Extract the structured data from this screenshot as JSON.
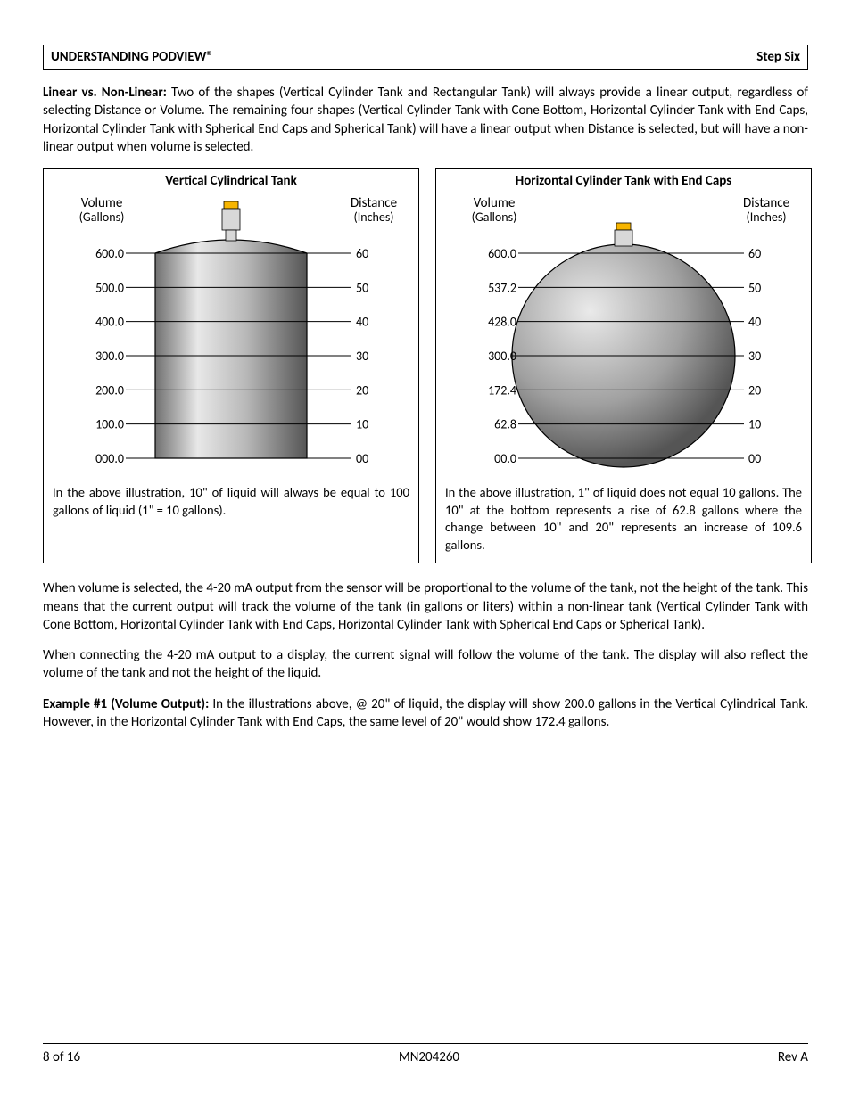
{
  "header": {
    "title": "UNDERSTANDING PODVIEW®",
    "step": "Step Six"
  },
  "intro": {
    "lead": "Linear vs. Non-Linear:",
    "text": "  Two of the shapes (Vertical Cylinder Tank and Rectangular Tank) will always provide a linear output, regardless of selecting Distance or Volume.  The remaining four shapes (Vertical Cylinder Tank with Cone Bottom, Horizontal Cylinder Tank with End Caps, Horizontal Cylinder Tank with Spherical End Caps and Spherical Tank) will have a linear output when Distance is selected, but will have a non-linear output when volume is selected."
  },
  "vertical_chart": {
    "title": "Vertical Cylindrical Tank",
    "left_header": "Volume",
    "left_sub": "(Gallons)",
    "right_header": "Distance",
    "right_sub": "(Inches)",
    "rows": [
      {
        "vol": "600.0",
        "dist": "60"
      },
      {
        "vol": "500.0",
        "dist": "50"
      },
      {
        "vol": "400.0",
        "dist": "40"
      },
      {
        "vol": "300.0",
        "dist": "30"
      },
      {
        "vol": "200.0",
        "dist": "20"
      },
      {
        "vol": "100.0",
        "dist": "10"
      },
      {
        "vol": "000.0",
        "dist": "00"
      }
    ],
    "caption": "In the above illustration, 10\" of liquid will always be equal to 100 gallons of liquid (1\" = 10 gallons).",
    "tank_fill_start": "#f0f0f0",
    "tank_fill_end": "#6e6e6e",
    "stroke": "#000000",
    "sensor_body": "#d8d8d8",
    "sensor_cap": "#f7b500"
  },
  "horizontal_chart": {
    "title": "Horizontal Cylinder Tank with End Caps",
    "left_header": "Volume",
    "left_sub": "(Gallons)",
    "right_header": "Distance",
    "right_sub": "(Inches)",
    "rows": [
      {
        "vol": "600.0",
        "dist": "60"
      },
      {
        "vol": "537.2",
        "dist": "50"
      },
      {
        "vol": "428.0",
        "dist": "40"
      },
      {
        "vol": "300.0",
        "dist": "30"
      },
      {
        "vol": "172.4",
        "dist": "20"
      },
      {
        "vol": "62.8",
        "dist": "10"
      },
      {
        "vol": "00.0",
        "dist": "00"
      }
    ],
    "caption": "In the above illustration, 1\" of liquid does not equal 10 gallons.   The 10\" at the bottom represents a rise of 62.8 gallons where the change between 10\" and 20\" represents an increase of 109.6 gallons.",
    "tank_fill_start": "#f0f0f0",
    "tank_fill_end": "#6e6e6e",
    "stroke": "#000000",
    "sensor_body": "#d8d8d8",
    "sensor_cap": "#f7b500"
  },
  "para2": "When volume is selected, the 4-20 mA output from the sensor will be proportional to the volume of the tank, not the height of the tank.  This means that the current output will track the volume of the tank (in gallons or liters) within a non-linear tank (Vertical Cylinder Tank with Cone Bottom, Horizontal Cylinder Tank with End Caps, Horizontal Cylinder Tank with Spherical End Caps or Spherical Tank).",
  "para3": "When connecting the 4-20 mA output to a display, the current signal will follow the volume of the tank.  The display will also reflect the volume of the tank and not the height of the liquid.",
  "example": {
    "lead": "Example #1 (Volume Output):",
    "text": " In the illustrations above, @ 20\" of liquid, the display will show 200.0 gallons in the Vertical Cylindrical Tank.  However, in the Horizontal Cylinder Tank with End Caps, the same level of 20\" would show 172.4 gallons."
  },
  "footer": {
    "left": "8 of 16",
    "center": "MN204260",
    "right": "Rev A"
  },
  "layout": {
    "text_color": "#000000",
    "font_family": "Calibri, Arial, sans-serif",
    "tick_font_size": 14
  }
}
